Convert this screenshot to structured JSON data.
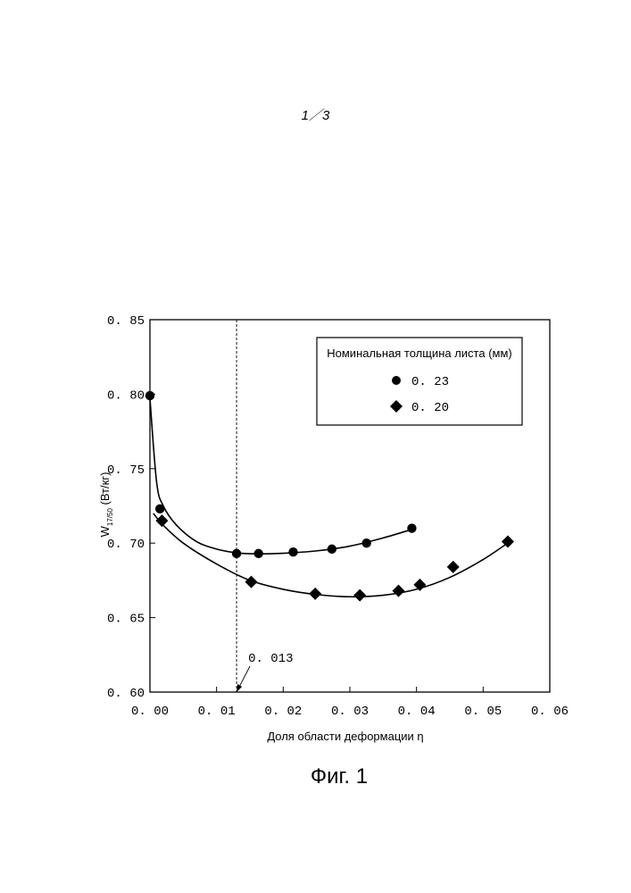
{
  "page_number": "1／3",
  "figure_caption": "Фиг. 1",
  "chart_data": {
    "type": "scatter",
    "xlabel": "Доля области деформации η",
    "ylabel_main": "W",
    "ylabel_sub": "17/50",
    "ylabel_unit": " (Вт/кг)",
    "xlim": [
      0.0,
      0.06
    ],
    "ylim": [
      0.6,
      0.85
    ],
    "x_ticks": [
      0.0,
      0.01,
      0.02,
      0.03,
      0.04,
      0.05,
      0.06
    ],
    "x_tick_labels": [
      "0. 00",
      "0. 01",
      "0. 02",
      "0. 03",
      "0. 04",
      "0. 05",
      "0. 06"
    ],
    "y_ticks": [
      0.6,
      0.65,
      0.7,
      0.75,
      0.8,
      0.85
    ],
    "y_tick_labels": [
      "0. 60",
      "0. 65",
      "0. 70",
      "0. 75",
      "0. 80",
      "0. 85"
    ],
    "grid": false,
    "legend_title": "Номинальная толщина листа (мм)",
    "legend_position": "top-right",
    "series": [
      {
        "name": "0. 23",
        "marker": "circle",
        "color": "#000000",
        "x": [
          0.0,
          0.0015,
          0.013,
          0.0163,
          0.0215,
          0.0273,
          0.0325,
          0.0393
        ],
        "y": [
          0.799,
          0.723,
          0.693,
          0.693,
          0.694,
          0.696,
          0.7,
          0.71
        ],
        "curve_x": [
          0.0,
          0.001,
          0.002,
          0.004,
          0.007,
          0.01,
          0.013,
          0.016,
          0.02,
          0.025,
          0.03,
          0.035,
          0.0395
        ],
        "curve_y": [
          0.797,
          0.741,
          0.725,
          0.712,
          0.701,
          0.696,
          0.6935,
          0.6928,
          0.6932,
          0.6948,
          0.698,
          0.7035,
          0.7095
        ]
      },
      {
        "name": "0. 20",
        "marker": "diamond",
        "color": "#000000",
        "x": [
          0.0018,
          0.0152,
          0.0248,
          0.0315,
          0.0373,
          0.0405,
          0.0455,
          0.0537
        ],
        "y": [
          0.715,
          0.674,
          0.666,
          0.665,
          0.668,
          0.672,
          0.684,
          0.701
        ],
        "curve_x": [
          0.0005,
          0.002,
          0.005,
          0.01,
          0.015,
          0.02,
          0.025,
          0.03,
          0.035,
          0.04,
          0.045,
          0.05,
          0.054
        ],
        "curve_y": [
          0.72,
          0.712,
          0.7,
          0.686,
          0.675,
          0.669,
          0.6655,
          0.664,
          0.665,
          0.669,
          0.677,
          0.689,
          0.701
        ]
      }
    ],
    "reference_line": {
      "x": 0.013,
      "style": "dashed",
      "label": "0. 013"
    }
  }
}
